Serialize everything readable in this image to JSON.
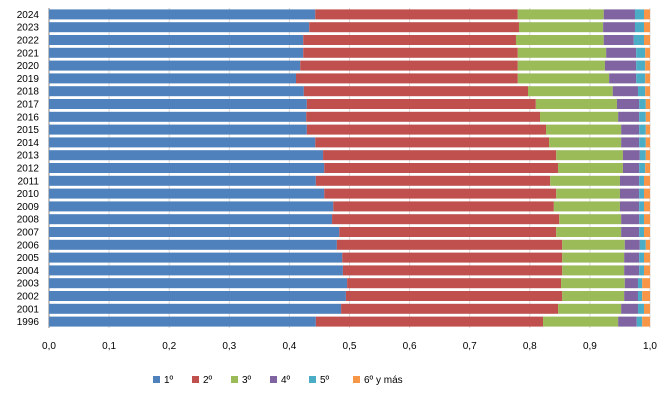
{
  "chart_data": {
    "type": "bar",
    "orientation": "horizontal",
    "stacked": true,
    "categories": [
      "2024",
      "2023",
      "2022",
      "2021",
      "2020",
      "2019",
      "2018",
      "2017",
      "2016",
      "2015",
      "2014",
      "2013",
      "2012",
      "2011",
      "2010",
      "2009",
      "2008",
      "2007",
      "2006",
      "2005",
      "2004",
      "2003",
      "2002",
      "2001",
      "1996"
    ],
    "series": [
      {
        "name": "1º",
        "color": "#4F81BD",
        "values": [
          0.443,
          0.433,
          0.423,
          0.423,
          0.418,
          0.411,
          0.424,
          0.429,
          0.428,
          0.429,
          0.443,
          0.456,
          0.458,
          0.444,
          0.458,
          0.473,
          0.471,
          0.483,
          0.479,
          0.488,
          0.489,
          0.496,
          0.494,
          0.486,
          0.444
        ]
      },
      {
        "name": "2º",
        "color": "#C0504D",
        "values": [
          0.337,
          0.349,
          0.354,
          0.357,
          0.362,
          0.369,
          0.373,
          0.381,
          0.389,
          0.398,
          0.389,
          0.388,
          0.389,
          0.39,
          0.386,
          0.367,
          0.378,
          0.361,
          0.375,
          0.366,
          0.365,
          0.356,
          0.36,
          0.361,
          0.378
        ]
      },
      {
        "name": "3º",
        "color": "#9BBB59",
        "values": [
          0.143,
          0.14,
          0.146,
          0.147,
          0.145,
          0.152,
          0.141,
          0.135,
          0.13,
          0.125,
          0.12,
          0.111,
          0.108,
          0.116,
          0.106,
          0.11,
          0.103,
          0.108,
          0.104,
          0.103,
          0.103,
          0.106,
          0.103,
          0.105,
          0.125
        ]
      },
      {
        "name": "4º",
        "color": "#8064A2",
        "values": [
          0.052,
          0.053,
          0.05,
          0.05,
          0.052,
          0.045,
          0.042,
          0.037,
          0.035,
          0.03,
          0.03,
          0.028,
          0.027,
          0.032,
          0.032,
          0.032,
          0.03,
          0.03,
          0.025,
          0.025,
          0.025,
          0.022,
          0.023,
          0.028,
          0.031
        ]
      },
      {
        "name": "5º",
        "color": "#4BACC6",
        "values": [
          0.015,
          0.015,
          0.017,
          0.015,
          0.015,
          0.015,
          0.012,
          0.011,
          0.011,
          0.011,
          0.011,
          0.01,
          0.01,
          0.008,
          0.008,
          0.008,
          0.008,
          0.008,
          0.01,
          0.008,
          0.008,
          0.007,
          0.007,
          0.01,
          0.009
        ]
      },
      {
        "name": "6º y más",
        "color": "#F79646",
        "values": [
          0.01,
          0.01,
          0.01,
          0.008,
          0.008,
          0.008,
          0.008,
          0.007,
          0.007,
          0.007,
          0.007,
          0.007,
          0.008,
          0.01,
          0.01,
          0.01,
          0.01,
          0.01,
          0.007,
          0.01,
          0.01,
          0.013,
          0.013,
          0.01,
          0.013
        ]
      }
    ],
    "xlim": [
      0,
      1
    ],
    "xticks": [
      "0,0",
      "0,1",
      "0,2",
      "0,3",
      "0,4",
      "0,5",
      "0,6",
      "0,7",
      "0,8",
      "0,9",
      "1,0"
    ],
    "grid": true,
    "legend": "bottom"
  }
}
